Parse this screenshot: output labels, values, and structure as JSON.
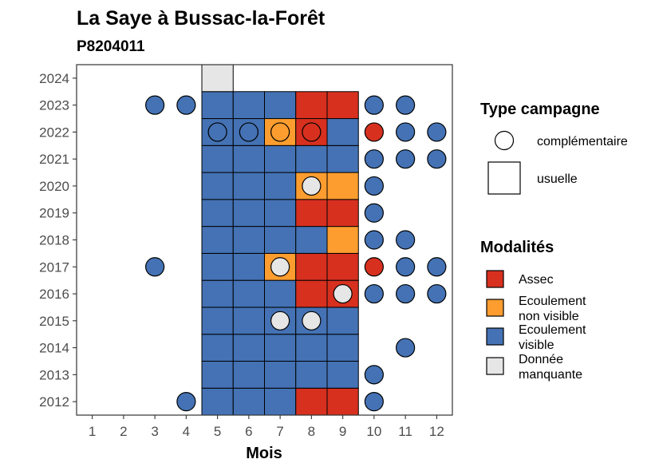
{
  "chart_data": {
    "type": "heatmap",
    "title": "La Saye à Bussac-la-Forêt",
    "subtitle": "P8204011",
    "xlabel": "Mois",
    "ylabel": "",
    "x_ticks": [
      "1",
      "2",
      "3",
      "4",
      "5",
      "6",
      "7",
      "8",
      "9",
      "10",
      "11",
      "12"
    ],
    "y_ticks": [
      "2012",
      "2013",
      "2014",
      "2015",
      "2016",
      "2017",
      "2018",
      "2019",
      "2020",
      "2021",
      "2022",
      "2023",
      "2024"
    ],
    "xlim": [
      0.5,
      12.5
    ],
    "ylim": [
      2011.5,
      2024.5
    ],
    "grid": false,
    "colors": {
      "Assec": "#d7301f",
      "Ecoulement non visible": "#fd9d2f",
      "Ecoulement visible": "#4472b4",
      "Donnée manquante": "#e6e6e6"
    },
    "usuelle": [
      {
        "year": 2012,
        "month": 5,
        "mod": "Ecoulement visible"
      },
      {
        "year": 2012,
        "month": 6,
        "mod": "Ecoulement visible"
      },
      {
        "year": 2012,
        "month": 7,
        "mod": "Ecoulement visible"
      },
      {
        "year": 2012,
        "month": 8,
        "mod": "Assec"
      },
      {
        "year": 2012,
        "month": 9,
        "mod": "Assec"
      },
      {
        "year": 2013,
        "month": 5,
        "mod": "Ecoulement visible"
      },
      {
        "year": 2013,
        "month": 6,
        "mod": "Ecoulement visible"
      },
      {
        "year": 2013,
        "month": 7,
        "mod": "Ecoulement visible"
      },
      {
        "year": 2013,
        "month": 8,
        "mod": "Ecoulement visible"
      },
      {
        "year": 2013,
        "month": 9,
        "mod": "Ecoulement visible"
      },
      {
        "year": 2014,
        "month": 5,
        "mod": "Ecoulement visible"
      },
      {
        "year": 2014,
        "month": 6,
        "mod": "Ecoulement visible"
      },
      {
        "year": 2014,
        "month": 7,
        "mod": "Ecoulement visible"
      },
      {
        "year": 2014,
        "month": 8,
        "mod": "Ecoulement visible"
      },
      {
        "year": 2014,
        "month": 9,
        "mod": "Ecoulement visible"
      },
      {
        "year": 2015,
        "month": 5,
        "mod": "Ecoulement visible"
      },
      {
        "year": 2015,
        "month": 6,
        "mod": "Ecoulement visible"
      },
      {
        "year": 2015,
        "month": 7,
        "mod": "Ecoulement visible"
      },
      {
        "year": 2015,
        "month": 8,
        "mod": "Ecoulement visible"
      },
      {
        "year": 2015,
        "month": 9,
        "mod": "Ecoulement visible"
      },
      {
        "year": 2016,
        "month": 5,
        "mod": "Ecoulement visible"
      },
      {
        "year": 2016,
        "month": 6,
        "mod": "Ecoulement visible"
      },
      {
        "year": 2016,
        "month": 7,
        "mod": "Ecoulement visible"
      },
      {
        "year": 2016,
        "month": 8,
        "mod": "Assec"
      },
      {
        "year": 2016,
        "month": 9,
        "mod": "Assec"
      },
      {
        "year": 2017,
        "month": 5,
        "mod": "Ecoulement visible"
      },
      {
        "year": 2017,
        "month": 6,
        "mod": "Ecoulement visible"
      },
      {
        "year": 2017,
        "month": 7,
        "mod": "Ecoulement non visible"
      },
      {
        "year": 2017,
        "month": 8,
        "mod": "Assec"
      },
      {
        "year": 2017,
        "month": 9,
        "mod": "Assec"
      },
      {
        "year": 2018,
        "month": 5,
        "mod": "Ecoulement visible"
      },
      {
        "year": 2018,
        "month": 6,
        "mod": "Ecoulement visible"
      },
      {
        "year": 2018,
        "month": 7,
        "mod": "Ecoulement visible"
      },
      {
        "year": 2018,
        "month": 8,
        "mod": "Ecoulement visible"
      },
      {
        "year": 2018,
        "month": 9,
        "mod": "Ecoulement non visible"
      },
      {
        "year": 2019,
        "month": 5,
        "mod": "Ecoulement visible"
      },
      {
        "year": 2019,
        "month": 6,
        "mod": "Ecoulement visible"
      },
      {
        "year": 2019,
        "month": 7,
        "mod": "Ecoulement visible"
      },
      {
        "year": 2019,
        "month": 8,
        "mod": "Assec"
      },
      {
        "year": 2019,
        "month": 9,
        "mod": "Assec"
      },
      {
        "year": 2020,
        "month": 5,
        "mod": "Ecoulement visible"
      },
      {
        "year": 2020,
        "month": 6,
        "mod": "Ecoulement visible"
      },
      {
        "year": 2020,
        "month": 7,
        "mod": "Ecoulement visible"
      },
      {
        "year": 2020,
        "month": 8,
        "mod": "Ecoulement non visible"
      },
      {
        "year": 2020,
        "month": 9,
        "mod": "Ecoulement non visible"
      },
      {
        "year": 2021,
        "month": 5,
        "mod": "Ecoulement visible"
      },
      {
        "year": 2021,
        "month": 6,
        "mod": "Ecoulement visible"
      },
      {
        "year": 2021,
        "month": 7,
        "mod": "Ecoulement visible"
      },
      {
        "year": 2021,
        "month": 8,
        "mod": "Ecoulement visible"
      },
      {
        "year": 2021,
        "month": 9,
        "mod": "Ecoulement visible"
      },
      {
        "year": 2022,
        "month": 5,
        "mod": "Ecoulement visible"
      },
      {
        "year": 2022,
        "month": 6,
        "mod": "Ecoulement visible"
      },
      {
        "year": 2022,
        "month": 7,
        "mod": "Ecoulement non visible"
      },
      {
        "year": 2022,
        "month": 8,
        "mod": "Assec"
      },
      {
        "year": 2022,
        "month": 9,
        "mod": "Ecoulement visible"
      },
      {
        "year": 2023,
        "month": 5,
        "mod": "Ecoulement visible"
      },
      {
        "year": 2023,
        "month": 6,
        "mod": "Ecoulement visible"
      },
      {
        "year": 2023,
        "month": 7,
        "mod": "Ecoulement visible"
      },
      {
        "year": 2023,
        "month": 8,
        "mod": "Assec"
      },
      {
        "year": 2023,
        "month": 9,
        "mod": "Assec"
      },
      {
        "year": 2024,
        "month": 5,
        "mod": "Donnée manquante"
      }
    ],
    "complementaire": [
      {
        "year": 2012,
        "month": 4,
        "mod": "Ecoulement visible"
      },
      {
        "year": 2012,
        "month": 10,
        "mod": "Ecoulement visible"
      },
      {
        "year": 2013,
        "month": 10,
        "mod": "Ecoulement visible"
      },
      {
        "year": 2014,
        "month": 11,
        "mod": "Ecoulement visible"
      },
      {
        "year": 2015,
        "month": 7,
        "mod": "Donnée manquante"
      },
      {
        "year": 2015,
        "month": 8,
        "mod": "Donnée manquante"
      },
      {
        "year": 2016,
        "month": 9,
        "mod": "Donnée manquante"
      },
      {
        "year": 2016,
        "month": 10,
        "mod": "Ecoulement visible"
      },
      {
        "year": 2016,
        "month": 11,
        "mod": "Ecoulement visible"
      },
      {
        "year": 2016,
        "month": 12,
        "mod": "Ecoulement visible"
      },
      {
        "year": 2017,
        "month": 3,
        "mod": "Ecoulement visible"
      },
      {
        "year": 2017,
        "month": 7,
        "mod": "Donnée manquante"
      },
      {
        "year": 2017,
        "month": 10,
        "mod": "Assec"
      },
      {
        "year": 2017,
        "month": 11,
        "mod": "Ecoulement visible"
      },
      {
        "year": 2017,
        "month": 12,
        "mod": "Ecoulement visible"
      },
      {
        "year": 2018,
        "month": 10,
        "mod": "Ecoulement visible"
      },
      {
        "year": 2018,
        "month": 11,
        "mod": "Ecoulement visible"
      },
      {
        "year": 2019,
        "month": 10,
        "mod": "Ecoulement visible"
      },
      {
        "year": 2020,
        "month": 8,
        "mod": "Donnée manquante"
      },
      {
        "year": 2020,
        "month": 10,
        "mod": "Ecoulement visible"
      },
      {
        "year": 2021,
        "month": 10,
        "mod": "Ecoulement visible"
      },
      {
        "year": 2021,
        "month": 11,
        "mod": "Ecoulement visible"
      },
      {
        "year": 2021,
        "month": 12,
        "mod": "Ecoulement visible"
      },
      {
        "year": 2022,
        "month": 5,
        "mod": "Ecoulement visible"
      },
      {
        "year": 2022,
        "month": 6,
        "mod": "Ecoulement visible"
      },
      {
        "year": 2022,
        "month": 7,
        "mod": "Ecoulement non visible"
      },
      {
        "year": 2022,
        "month": 8,
        "mod": "Assec"
      },
      {
        "year": 2022,
        "month": 10,
        "mod": "Assec"
      },
      {
        "year": 2022,
        "month": 11,
        "mod": "Ecoulement visible"
      },
      {
        "year": 2022,
        "month": 12,
        "mod": "Ecoulement visible"
      },
      {
        "year": 2023,
        "month": 3,
        "mod": "Ecoulement visible"
      },
      {
        "year": 2023,
        "month": 4,
        "mod": "Ecoulement visible"
      },
      {
        "year": 2023,
        "month": 10,
        "mod": "Ecoulement visible"
      },
      {
        "year": 2023,
        "month": 11,
        "mod": "Ecoulement visible"
      }
    ],
    "legend": {
      "type_title": "Type campagne",
      "type_items": [
        "complémentaire",
        "usuelle"
      ],
      "mod_title": "Modalités",
      "mod_items": [
        {
          "key": "Assec",
          "lines": [
            "Assec"
          ]
        },
        {
          "key": "Ecoulement non visible",
          "lines": [
            "Ecoulement",
            "non visible"
          ]
        },
        {
          "key": "Ecoulement visible",
          "lines": [
            "Ecoulement",
            "visible"
          ]
        },
        {
          "key": "Donnée manquante",
          "lines": [
            "Donnée",
            "manquante"
          ]
        }
      ],
      "placement": "right"
    }
  }
}
